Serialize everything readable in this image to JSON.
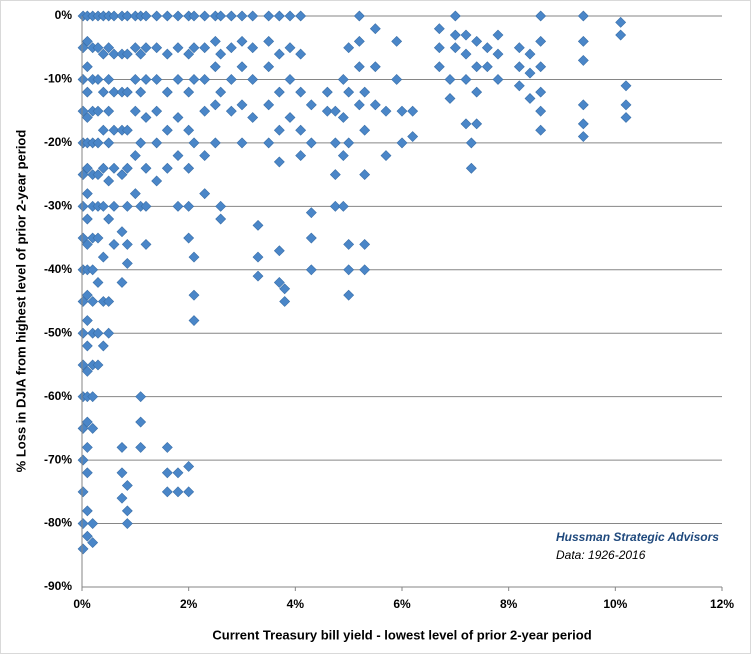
{
  "chart_data": {
    "type": "scatter",
    "xlabel": "Current Treasury bill yield - lowest level of prior 2-year period",
    "ylabel": "% Loss in DJIA from highest level of prior 2-year period",
    "annotations": [
      "Hussman Strategic Advisors",
      "Data: 1926-2016"
    ],
    "xlim": [
      0,
      12
    ],
    "xticks": [
      {
        "value": 0,
        "label": "0%"
      },
      {
        "value": 2,
        "label": "2%"
      },
      {
        "value": 4,
        "label": "4%"
      },
      {
        "value": 6,
        "label": "6%"
      },
      {
        "value": 8,
        "label": "8%"
      },
      {
        "value": 10,
        "label": "10%"
      },
      {
        "value": 12,
        "label": "12%"
      }
    ],
    "ylim": [
      -90,
      0
    ],
    "yticks": [
      {
        "value": 0,
        "label": "0%"
      },
      {
        "value": -10,
        "label": "-10%"
      },
      {
        "value": -20,
        "label": "-20%"
      },
      {
        "value": -30,
        "label": "-30%"
      },
      {
        "value": -40,
        "label": "-40%"
      },
      {
        "value": -50,
        "label": "-50%"
      },
      {
        "value": -60,
        "label": "-60%"
      },
      {
        "value": -70,
        "label": "-70%"
      },
      {
        "value": -80,
        "label": "-80%"
      },
      {
        "value": -90,
        "label": "-90%"
      }
    ],
    "grid": true,
    "series": [
      {
        "color": "#4a86c8",
        "x": [
          0.02,
          0.02,
          0.02,
          0.02,
          0.02,
          0.02,
          0.02,
          0.02,
          0.02,
          0.02,
          0.02,
          0.02,
          0.02,
          0.02,
          0.02,
          0.02,
          0.02,
          0.02,
          0.1,
          0.1,
          0.1,
          0.1,
          0.1,
          0.1,
          0.1,
          0.1,
          0.1,
          0.1,
          0.1,
          0.1,
          0.1,
          0.1,
          0.1,
          0.1,
          0.1,
          0.1,
          0.1,
          0.1,
          0.1,
          0.2,
          0.2,
          0.2,
          0.2,
          0.2,
          0.2,
          0.2,
          0.2,
          0.2,
          0.2,
          0.2,
          0.2,
          0.2,
          0.2,
          0.2,
          0.2,
          0.3,
          0.3,
          0.3,
          0.3,
          0.3,
          0.3,
          0.3,
          0.3,
          0.3,
          0.3,
          0.3,
          0.4,
          0.4,
          0.4,
          0.4,
          0.4,
          0.4,
          0.4,
          0.4,
          0.4,
          0.5,
          0.5,
          0.5,
          0.5,
          0.5,
          0.5,
          0.5,
          0.5,
          0.5,
          0.6,
          0.6,
          0.6,
          0.6,
          0.6,
          0.6,
          0.6,
          0.75,
          0.75,
          0.75,
          0.75,
          0.75,
          0.75,
          0.75,
          0.75,
          0.75,
          0.75,
          0.85,
          0.85,
          0.85,
          0.85,
          0.85,
          0.85,
          0.85,
          0.85,
          0.85,
          0.85,
          0.85,
          1.0,
          1.0,
          1.0,
          1.0,
          1.0,
          1.0,
          1.1,
          1.1,
          1.1,
          1.1,
          1.1,
          1.1,
          1.1,
          1.1,
          1.2,
          1.2,
          1.2,
          1.2,
          1.2,
          1.2,
          1.2,
          1.4,
          1.4,
          1.4,
          1.4,
          1.4,
          1.4,
          1.6,
          1.6,
          1.6,
          1.6,
          1.6,
          1.6,
          1.6,
          1.6,
          1.8,
          1.8,
          1.8,
          1.8,
          1.8,
          1.8,
          1.8,
          1.8,
          2.0,
          2.0,
          2.0,
          2.0,
          2.0,
          2.0,
          2.0,
          2.0,
          2.0,
          2.1,
          2.1,
          2.1,
          2.1,
          2.1,
          2.1,
          2.1,
          2.3,
          2.3,
          2.3,
          2.3,
          2.3,
          2.3,
          2.5,
          2.5,
          2.5,
          2.5,
          2.5,
          2.6,
          2.6,
          2.6,
          2.6,
          2.6,
          2.8,
          2.8,
          2.8,
          2.8,
          3.0,
          3.0,
          3.0,
          3.0,
          3.0,
          3.2,
          3.2,
          3.2,
          3.2,
          3.3,
          3.3,
          3.3,
          3.5,
          3.5,
          3.5,
          3.5,
          3.5,
          3.7,
          3.7,
          3.7,
          3.7,
          3.7,
          3.7,
          3.7,
          3.8,
          3.8,
          3.9,
          3.9,
          3.9,
          3.9,
          4.1,
          4.1,
          4.1,
          4.1,
          4.1,
          4.3,
          4.3,
          4.3,
          4.3,
          4.3,
          4.6,
          4.6,
          4.75,
          4.75,
          4.75,
          4.75,
          4.9,
          4.9,
          4.9,
          4.9,
          5.0,
          5.0,
          5.0,
          5.0,
          5.0,
          5.0,
          5.3,
          5.3,
          5.3,
          5.3,
          5.3,
          5.2,
          5.2,
          5.2,
          5.2,
          5.5,
          5.5,
          5.5,
          5.7,
          5.7,
          5.9,
          5.9,
          6.0,
          6.0,
          6.2,
          6.2,
          6.7,
          6.7,
          6.7,
          6.9,
          6.9,
          7.0,
          7.0,
          7.0,
          7.2,
          7.2,
          7.2,
          7.2,
          7.3,
          7.3,
          7.4,
          7.4,
          7.4,
          7.4,
          7.6,
          7.6,
          7.8,
          7.8,
          7.8,
          8.2,
          8.2,
          8.2,
          8.4,
          8.4,
          8.4,
          8.6,
          8.6,
          8.6,
          8.6,
          8.6,
          8.6,
          9.4,
          9.4,
          9.4,
          9.4,
          9.4,
          9.4,
          10.1,
          10.1,
          10.2,
          10.2,
          10.2
        ],
        "values": [
          0,
          -5,
          -10,
          -15,
          -20,
          -25,
          -30,
          -35,
          -40,
          -45,
          -50,
          -55,
          -60,
          -65,
          -70,
          -75,
          -80,
          -84,
          0,
          -4,
          -8,
          -12,
          -16,
          -20,
          -24,
          -28,
          -32,
          -36,
          -40,
          -44,
          -48,
          -52,
          -56,
          -60,
          -64,
          -68,
          -72,
          -78,
          -82,
          0,
          -5,
          -10,
          -15,
          -20,
          -25,
          -30,
          -35,
          -40,
          -45,
          -50,
          -55,
          -60,
          -65,
          -80,
          -83,
          0,
          -5,
          -10,
          -15,
          -20,
          -25,
          -30,
          -35,
          -42,
          -50,
          -55,
          0,
          -6,
          -12,
          -18,
          -24,
          -30,
          -38,
          -45,
          -52,
          0,
          -5,
          -10,
          -15,
          -20,
          -26,
          -32,
          -45,
          -50,
          0,
          -6,
          -12,
          -18,
          -24,
          -30,
          -36,
          0,
          -6,
          -12,
          -18,
          -25,
          -34,
          -42,
          -68,
          -72,
          -76,
          0,
          -6,
          -12,
          -18,
          -24,
          -30,
          -36,
          -39,
          -74,
          -78,
          -80,
          0,
          -5,
          -10,
          -15,
          -22,
          -28,
          0,
          -6,
          -12,
          -20,
          -30,
          -60,
          -64,
          -68,
          0,
          -5,
          -10,
          -16,
          -24,
          -30,
          -36,
          0,
          -5,
          -10,
          -15,
          -20,
          -26,
          0,
          -6,
          -12,
          -18,
          -24,
          -68,
          -72,
          -75,
          0,
          -5,
          -10,
          -16,
          -22,
          -30,
          -72,
          -75,
          0,
          -6,
          -12,
          -18,
          -24,
          -30,
          -35,
          -71,
          -75,
          0,
          -5,
          -10,
          -20,
          -38,
          -44,
          -48,
          0,
          -5,
          -10,
          -15,
          -22,
          -28,
          0,
          -4,
          -8,
          -14,
          -20,
          0,
          -6,
          -12,
          -30,
          -32,
          0,
          -5,
          -10,
          -15,
          0,
          -4,
          -8,
          -14,
          -20,
          0,
          -5,
          -10,
          -16,
          -33,
          -38,
          -41,
          0,
          -4,
          -8,
          -14,
          -20,
          0,
          -6,
          -12,
          -18,
          -23,
          -37,
          -42,
          -43,
          -45,
          0,
          -5,
          -10,
          -16,
          0,
          -6,
          -12,
          -18,
          -22,
          -31,
          -35,
          -40,
          -14,
          -20,
          -12,
          -15,
          -15,
          -20,
          -25,
          -30,
          -10,
          -16,
          -22,
          -30,
          -36,
          -40,
          -44,
          -5,
          -12,
          -20,
          -36,
          -40,
          -12,
          -18,
          -25,
          0,
          -4,
          -8,
          -14,
          -2,
          -8,
          -14,
          -15,
          -22,
          -4,
          -10,
          -15,
          -20,
          -15,
          -19,
          -2,
          -5,
          -8,
          -10,
          -13,
          0,
          -3,
          -5,
          -3,
          -6,
          -10,
          -17,
          -20,
          -24,
          -4,
          -8,
          -12,
          -17,
          -5,
          -8,
          -3,
          -6,
          -10,
          -5,
          -8,
          -11,
          -9,
          -13,
          -6,
          0,
          -4,
          -8,
          -12,
          -15,
          -18,
          0,
          -4,
          -7,
          -14,
          -17,
          -19,
          -1,
          -3,
          -11,
          -14,
          -16
        ]
      }
    ]
  }
}
